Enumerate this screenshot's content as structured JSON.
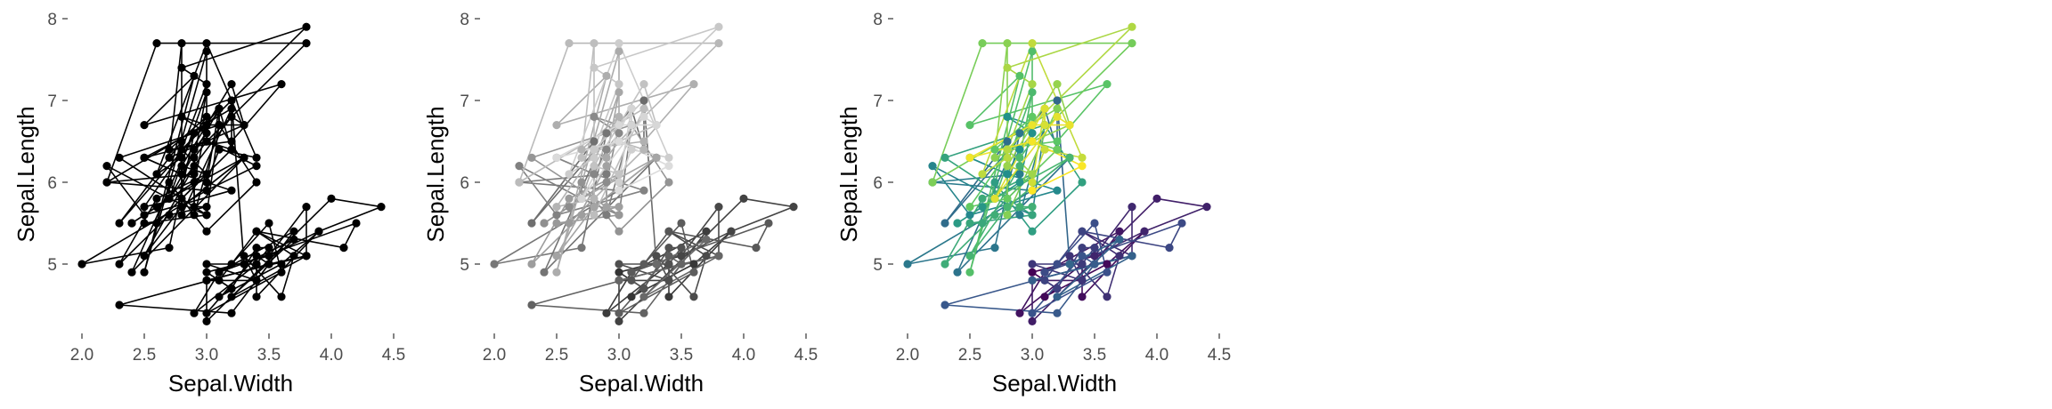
{
  "chart_data": [
    {
      "type": "line",
      "xlabel": "Sepal.Width",
      "ylabel": "Sepal.Length",
      "xlim": [
        1.8,
        4.6
      ],
      "ylim": [
        4.0,
        8.1
      ],
      "x_ticks": [
        "2.0",
        "2.5",
        "3.0",
        "3.5",
        "4.0",
        "4.5"
      ],
      "y_ticks": [
        "5",
        "6",
        "7",
        "8"
      ],
      "grid": false,
      "color_mode": "single",
      "color": "#000000",
      "series": [
        {
          "values": [
            [
              3.5,
              5.1
            ],
            [
              3.0,
              4.9
            ],
            [
              3.2,
              4.7
            ],
            [
              3.1,
              4.6
            ],
            [
              3.6,
              5.0
            ],
            [
              3.9,
              5.4
            ],
            [
              3.4,
              4.6
            ],
            [
              3.4,
              5.0
            ],
            [
              2.9,
              4.4
            ],
            [
              3.1,
              4.9
            ],
            [
              3.7,
              5.4
            ],
            [
              3.4,
              4.8
            ],
            [
              3.0,
              4.8
            ],
            [
              3.0,
              4.3
            ],
            [
              4.0,
              5.8
            ],
            [
              4.4,
              5.7
            ],
            [
              3.9,
              5.4
            ],
            [
              3.5,
              5.1
            ],
            [
              3.8,
              5.7
            ],
            [
              3.8,
              5.1
            ],
            [
              3.4,
              5.4
            ],
            [
              3.7,
              5.1
            ],
            [
              3.6,
              4.6
            ],
            [
              3.3,
              5.1
            ],
            [
              3.4,
              4.8
            ],
            [
              3.0,
              5.0
            ],
            [
              3.4,
              5.0
            ],
            [
              3.5,
              5.2
            ],
            [
              3.4,
              5.2
            ],
            [
              3.2,
              4.7
            ],
            [
              3.1,
              4.8
            ],
            [
              3.4,
              5.4
            ],
            [
              4.1,
              5.2
            ],
            [
              4.2,
              5.5
            ],
            [
              3.1,
              4.9
            ],
            [
              3.2,
              5.0
            ],
            [
              3.5,
              5.5
            ],
            [
              3.6,
              4.9
            ],
            [
              3.0,
              4.4
            ],
            [
              3.4,
              5.1
            ],
            [
              3.5,
              5.0
            ],
            [
              2.3,
              4.5
            ],
            [
              3.2,
              4.4
            ],
            [
              3.5,
              5.0
            ],
            [
              3.8,
              5.1
            ],
            [
              3.0,
              4.8
            ],
            [
              3.8,
              5.1
            ],
            [
              3.2,
              4.6
            ],
            [
              3.7,
              5.3
            ],
            [
              3.3,
              5.0
            ],
            [
              3.2,
              7.0
            ],
            [
              3.2,
              6.4
            ],
            [
              3.1,
              6.9
            ],
            [
              2.3,
              5.5
            ],
            [
              2.8,
              6.5
            ],
            [
              2.8,
              5.7
            ],
            [
              3.3,
              6.3
            ],
            [
              2.4,
              4.9
            ],
            [
              2.9,
              6.6
            ],
            [
              2.7,
              5.2
            ],
            [
              2.0,
              5.0
            ],
            [
              3.0,
              5.9
            ],
            [
              2.2,
              6.0
            ],
            [
              2.9,
              6.1
            ],
            [
              2.9,
              5.6
            ],
            [
              3.1,
              6.7
            ],
            [
              3.0,
              5.6
            ],
            [
              2.7,
              5.8
            ],
            [
              2.2,
              6.2
            ],
            [
              2.5,
              5.6
            ],
            [
              3.2,
              5.9
            ],
            [
              2.8,
              6.1
            ],
            [
              2.5,
              6.3
            ],
            [
              2.8,
              6.1
            ],
            [
              2.9,
              6.4
            ],
            [
              3.0,
              6.6
            ],
            [
              2.8,
              6.8
            ],
            [
              3.0,
              6.7
            ],
            [
              2.9,
              6.0
            ],
            [
              2.6,
              5.7
            ],
            [
              2.4,
              5.5
            ],
            [
              2.4,
              5.5
            ],
            [
              2.7,
              5.8
            ],
            [
              2.7,
              6.0
            ],
            [
              3.0,
              5.4
            ],
            [
              3.4,
              6.0
            ],
            [
              3.1,
              6.7
            ],
            [
              2.3,
              6.3
            ],
            [
              3.0,
              5.6
            ],
            [
              2.5,
              5.5
            ],
            [
              2.6,
              5.5
            ],
            [
              3.0,
              6.1
            ],
            [
              2.6,
              5.8
            ],
            [
              2.3,
              5.0
            ],
            [
              2.7,
              5.6
            ],
            [
              3.0,
              5.7
            ],
            [
              2.9,
              5.7
            ],
            [
              2.9,
              6.2
            ],
            [
              2.5,
              5.1
            ],
            [
              2.8,
              5.7
            ],
            [
              3.3,
              6.3
            ],
            [
              2.7,
              5.8
            ],
            [
              3.0,
              7.1
            ],
            [
              2.9,
              6.3
            ],
            [
              3.0,
              6.5
            ],
            [
              3.0,
              7.6
            ],
            [
              2.5,
              4.9
            ],
            [
              2.9,
              7.3
            ],
            [
              2.5,
              6.7
            ],
            [
              3.6,
              7.2
            ],
            [
              3.2,
              6.5
            ],
            [
              2.7,
              6.4
            ],
            [
              3.0,
              6.8
            ],
            [
              2.5,
              5.7
            ],
            [
              2.8,
              5.8
            ],
            [
              3.2,
              6.4
            ],
            [
              3.0,
              6.5
            ],
            [
              3.8,
              7.7
            ],
            [
              2.6,
              7.7
            ],
            [
              2.2,
              6.0
            ],
            [
              3.2,
              6.9
            ],
            [
              2.8,
              5.6
            ],
            [
              2.8,
              7.7
            ],
            [
              2.7,
              6.3
            ],
            [
              3.3,
              6.7
            ],
            [
              3.2,
              7.2
            ],
            [
              2.8,
              6.2
            ],
            [
              3.0,
              6.1
            ],
            [
              2.8,
              6.4
            ],
            [
              3.0,
              7.2
            ],
            [
              2.8,
              7.4
            ],
            [
              3.8,
              7.9
            ],
            [
              2.8,
              6.4
            ],
            [
              2.8,
              6.3
            ],
            [
              2.6,
              6.1
            ],
            [
              3.0,
              7.7
            ],
            [
              3.4,
              6.3
            ],
            [
              3.1,
              6.4
            ],
            [
              3.0,
              6.0
            ],
            [
              3.1,
              6.9
            ],
            [
              3.1,
              6.7
            ],
            [
              3.1,
              6.9
            ],
            [
              2.7,
              5.8
            ],
            [
              3.2,
              6.8
            ],
            [
              3.3,
              6.7
            ],
            [
              3.0,
              6.7
            ],
            [
              2.5,
              6.3
            ],
            [
              3.0,
              6.5
            ],
            [
              3.4,
              6.2
            ],
            [
              3.0,
              5.9
            ]
          ]
        }
      ]
    },
    {
      "type": "line",
      "xlabel": "Sepal.Width",
      "ylabel": "Sepal.Length",
      "xlim": [
        1.8,
        4.6
      ],
      "ylim": [
        4.0,
        8.1
      ],
      "x_ticks": [
        "2.0",
        "2.5",
        "3.0",
        "3.5",
        "4.0",
        "4.5"
      ],
      "y_ticks": [
        "5",
        "6",
        "7",
        "8"
      ],
      "grid": false,
      "color_mode": "grey gradient",
      "color_range": [
        "#333333",
        "#dddddd"
      ]
    },
    {
      "type": "line",
      "xlabel": "Sepal.Width",
      "ylabel": "Sepal.Length",
      "xlim": [
        1.8,
        4.6
      ],
      "ylim": [
        4.0,
        8.1
      ],
      "x_ticks": [
        "2.0",
        "2.5",
        "3.0",
        "3.5",
        "4.0",
        "4.5"
      ],
      "y_ticks": [
        "5",
        "6",
        "7",
        "8"
      ],
      "grid": false,
      "color_mode": "viridis gradient",
      "color_range": [
        "#440154",
        "#3b528b",
        "#21908c",
        "#5dc863",
        "#fde725"
      ]
    }
  ]
}
